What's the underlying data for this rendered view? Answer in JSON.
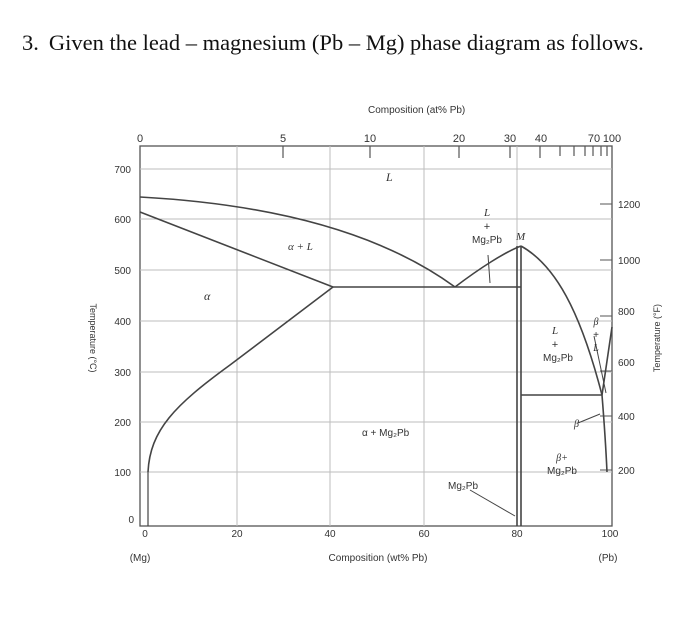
{
  "question": {
    "number": "3.",
    "text": "Given the lead – magnesium (Pb – Mg) phase diagram as follows."
  },
  "diagram": {
    "top_axis_title": "Composition (at% Pb)",
    "top_ticks": [
      "0",
      "5",
      "10",
      "20",
      "30",
      "40",
      "70",
      "100"
    ],
    "bottom_axis_title": "Composition (wt% Pb)",
    "bottom_ticks": [
      "0",
      "20",
      "40",
      "60",
      "80",
      "100"
    ],
    "bottom_end_left": "(Mg)",
    "bottom_end_right": "(Pb)",
    "left_axis_title": "Temperature (°C)",
    "left_ticks": [
      "0",
      "100",
      "200",
      "300",
      "400",
      "500",
      "600",
      "700"
    ],
    "right_axis_title": "Temperature (°F)",
    "right_ticks": [
      "200",
      "400",
      "600",
      "800",
      "1000",
      "1200"
    ],
    "labels": {
      "liquid": "L",
      "alpha": "α",
      "alpha_plus_liquid": "α + L",
      "liquid_mg2pb_l": "L",
      "liquid_mg2pb_plus": "+",
      "liquid_mg2pb_c": "Mg₂Pb",
      "max_point": "M",
      "alpha_mg2pb": "α + Mg₂Pb",
      "mg2pb_line": "Mg₂Pb",
      "right_l": "L",
      "right_plus": "+",
      "right_mg2pb": "Mg₂Pb",
      "beta_l_b": "β",
      "beta_l_plus": "+",
      "beta_l_l": "L",
      "beta_mg2pb_b": "β+",
      "beta_mg2pb_c": "Mg₂Pb",
      "beta": "β"
    }
  }
}
